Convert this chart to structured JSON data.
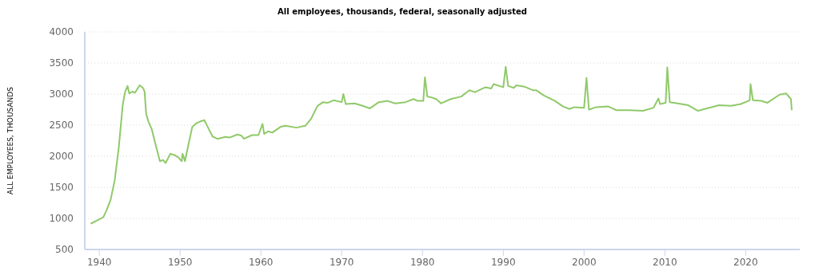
{
  "chart_data": {
    "type": "line",
    "title": "All employees, thousands, federal, seasonally adjusted",
    "ylabel": "ALL EMPLOYEES, THOUSANDS",
    "x": [
      1939.0,
      1939.9,
      1940.5,
      1940.9,
      1941.4,
      1941.9,
      1942.4,
      1942.7,
      1942.9,
      1943.2,
      1943.5,
      1943.7,
      1944.1,
      1944.4,
      1945.0,
      1945.4,
      1945.6,
      1945.8,
      1946.1,
      1946.5,
      1947.0,
      1947.5,
      1947.9,
      1948.2,
      1948.8,
      1949.3,
      1949.8,
      1950.2,
      1950.3,
      1950.6,
      1951.0,
      1951.5,
      1952.0,
      1952.5,
      1953.0,
      1953.5,
      1954.0,
      1954.6,
      1955.6,
      1956.1,
      1957.1,
      1957.6,
      1957.9,
      1958.9,
      1959.7,
      1960.2,
      1960.4,
      1960.9,
      1961.4,
      1962.4,
      1963.0,
      1964.4,
      1965.5,
      1966.2,
      1967.0,
      1967.7,
      1968.3,
      1969.0,
      1970.0,
      1970.2,
      1970.5,
      1971.6,
      1972.6,
      1973.5,
      1974.6,
      1975.7,
      1976.6,
      1977.9,
      1978.9,
      1979.4,
      1980.1,
      1980.3,
      1980.6,
      1981.0,
      1981.7,
      1982.3,
      1983.5,
      1984.8,
      1985.8,
      1986.5,
      1987.8,
      1988.5,
      1988.8,
      1990.0,
      1990.3,
      1990.6,
      1991.3,
      1991.6,
      1992.6,
      1993.7,
      1994.1,
      1995.0,
      1996.4,
      1997.4,
      1998.2,
      1998.8,
      2000.0,
      2000.3,
      2000.6,
      2001.5,
      2003.0,
      2004.0,
      2005.6,
      2007.3,
      2008.6,
      2009.2,
      2009.4,
      2010.1,
      2010.3,
      2010.6,
      2011.6,
      2012.9,
      2014.1,
      2015.2,
      2016.7,
      2018.2,
      2019.4,
      2020.5,
      2020.6,
      2020.9,
      2021.9,
      2022.7,
      2024.2,
      2025.0,
      2025.6,
      2025.7
    ],
    "series": [
      {
        "color": "#90c96a",
        "values": [
          920,
          980,
          1020,
          1130,
          1300,
          1610,
          2130,
          2550,
          2830,
          3040,
          3130,
          3010,
          3040,
          3020,
          3140,
          3100,
          3040,
          2680,
          2550,
          2430,
          2170,
          1920,
          1940,
          1890,
          2040,
          2020,
          1980,
          1920,
          2040,
          1920,
          2170,
          2470,
          2530,
          2560,
          2580,
          2450,
          2320,
          2280,
          2310,
          2300,
          2350,
          2330,
          2280,
          2340,
          2340,
          2520,
          2360,
          2400,
          2380,
          2470,
          2490,
          2460,
          2490,
          2600,
          2810,
          2870,
          2860,
          2900,
          2870,
          3000,
          2840,
          2850,
          2810,
          2770,
          2870,
          2890,
          2850,
          2870,
          2920,
          2890,
          2890,
          3270,
          2960,
          2950,
          2920,
          2850,
          2920,
          2960,
          3060,
          3030,
          3110,
          3090,
          3160,
          3110,
          3440,
          3130,
          3100,
          3140,
          3120,
          3060,
          3060,
          2980,
          2890,
          2800,
          2760,
          2790,
          2780,
          3260,
          2750,
          2790,
          2800,
          2740,
          2740,
          2730,
          2780,
          2930,
          2840,
          2860,
          3430,
          2870,
          2850,
          2820,
          2730,
          2770,
          2820,
          2810,
          2840,
          2900,
          3160,
          2900,
          2890,
          2860,
          2990,
          3010,
          2920,
          2750
        ]
      }
    ],
    "xlim": [
      1938.2,
      2026.7
    ],
    "ylim": [
      500,
      4000
    ],
    "xticks": [
      1940,
      1950,
      1960,
      1970,
      1980,
      1990,
      2000,
      2010,
      2020
    ],
    "yticks": [
      500,
      1000,
      1500,
      2000,
      2500,
      3000,
      3500,
      4000
    ],
    "grid": "y",
    "marker": "none",
    "line_style": "solid"
  }
}
